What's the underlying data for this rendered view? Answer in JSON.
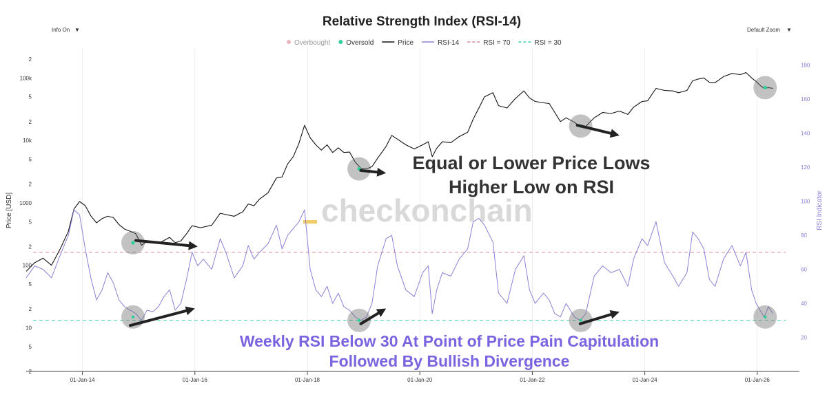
{
  "chart_data": {
    "type": "line",
    "title": "Relative Strength Index (RSI-14)",
    "controls": {
      "info_label": "Info On",
      "zoom_label": "Default Zoom"
    },
    "legend": [
      {
        "label": "Overbought",
        "kind": "dot",
        "color": "#e8b4bd"
      },
      {
        "label": "Oversold",
        "kind": "dot",
        "color": "#2fcf9a"
      },
      {
        "label": "Price",
        "kind": "line",
        "color": "#111111"
      },
      {
        "label": "RSI-14",
        "kind": "line",
        "color": "#8c7fd6"
      },
      {
        "label": "RSI = 70",
        "kind": "dash",
        "color": "#d58a9a"
      },
      {
        "label": "RSI = 30",
        "kind": "dash",
        "color": "#3ecfae"
      }
    ],
    "y_left": {
      "label": "Price [USD]",
      "scale": "log",
      "range": [
        2,
        300000
      ],
      "ticks": [
        {
          "v": 2,
          "t": "2"
        },
        {
          "v": 5,
          "t": "5"
        },
        {
          "v": 10,
          "t": "10"
        },
        {
          "v": 20,
          "t": "2"
        },
        {
          "v": 50,
          "t": "5"
        },
        {
          "v": 100,
          "t": "100"
        },
        {
          "v": 200,
          "t": "2"
        },
        {
          "v": 500,
          "t": "5"
        },
        {
          "v": 1000,
          "t": "1000"
        },
        {
          "v": 2000,
          "t": "2"
        },
        {
          "v": 5000,
          "t": "5"
        },
        {
          "v": 10000,
          "t": "10k"
        },
        {
          "v": 20000,
          "t": "2"
        },
        {
          "v": 50000,
          "t": "5"
        },
        {
          "v": 100000,
          "t": "100k"
        },
        {
          "v": 200000,
          "t": "2"
        }
      ]
    },
    "y_right": {
      "label": "RSI Indicator",
      "range": [
        0,
        190
      ],
      "ticks": [
        20,
        40,
        60,
        80,
        100,
        120,
        140,
        160,
        180
      ]
    },
    "x_axis": {
      "range": [
        2013.0,
        2026.75
      ],
      "ticks": [
        {
          "v": 2014.0,
          "t": "01-Jan-14"
        },
        {
          "v": 2016.0,
          "t": "01-Jan-16"
        },
        {
          "v": 2018.0,
          "t": "01-Jan-18"
        },
        {
          "v": 2020.0,
          "t": "01-Jan-20"
        },
        {
          "v": 2022.0,
          "t": "01-Jan-22"
        },
        {
          "v": 2024.0,
          "t": "01-Jan-24"
        },
        {
          "v": 2026.0,
          "t": "01-Jan-26"
        }
      ]
    },
    "reference_lines": [
      {
        "name": "RSI = 70",
        "value": 70,
        "color": "#d58a9a"
      },
      {
        "name": "RSI = 30",
        "value": 30,
        "color": "#3ecfae"
      }
    ],
    "series": [
      {
        "name": "Price",
        "axis": "left",
        "color": "#111111",
        "points": [
          [
            2013.0,
            80
          ],
          [
            2013.15,
            110
          ],
          [
            2013.3,
            130
          ],
          [
            2013.45,
            100
          ],
          [
            2013.6,
            180
          ],
          [
            2013.75,
            350
          ],
          [
            2013.85,
            800
          ],
          [
            2013.95,
            1050
          ],
          [
            2014.05,
            900
          ],
          [
            2014.15,
            620
          ],
          [
            2014.25,
            480
          ],
          [
            2014.35,
            560
          ],
          [
            2014.45,
            610
          ],
          [
            2014.55,
            580
          ],
          [
            2014.65,
            450
          ],
          [
            2014.75,
            380
          ],
          [
            2014.85,
            350
          ],
          [
            2014.95,
            320
          ],
          [
            2015.05,
            210
          ],
          [
            2015.15,
            240
          ],
          [
            2015.25,
            235
          ],
          [
            2015.35,
            225
          ],
          [
            2015.45,
            250
          ],
          [
            2015.55,
            280
          ],
          [
            2015.65,
            230
          ],
          [
            2015.75,
            245
          ],
          [
            2015.85,
            320
          ],
          [
            2015.95,
            430
          ],
          [
            2016.1,
            400
          ],
          [
            2016.3,
            440
          ],
          [
            2016.45,
            680
          ],
          [
            2016.55,
            650
          ],
          [
            2016.7,
            610
          ],
          [
            2016.85,
            720
          ],
          [
            2016.95,
            960
          ],
          [
            2017.05,
            900
          ],
          [
            2017.15,
            1150
          ],
          [
            2017.3,
            1450
          ],
          [
            2017.45,
            2500
          ],
          [
            2017.55,
            2600
          ],
          [
            2017.65,
            4200
          ],
          [
            2017.75,
            5500
          ],
          [
            2017.85,
            9000
          ],
          [
            2017.95,
            17500
          ],
          [
            2018.05,
            11000
          ],
          [
            2018.15,
            8500
          ],
          [
            2018.25,
            7000
          ],
          [
            2018.35,
            8500
          ],
          [
            2018.45,
            6400
          ],
          [
            2018.55,
            7600
          ],
          [
            2018.65,
            6400
          ],
          [
            2018.75,
            6500
          ],
          [
            2018.85,
            4500
          ],
          [
            2018.95,
            3600
          ],
          [
            2019.05,
            3500
          ],
          [
            2019.15,
            3800
          ],
          [
            2019.25,
            5200
          ],
          [
            2019.4,
            8000
          ],
          [
            2019.5,
            12000
          ],
          [
            2019.6,
            10500
          ],
          [
            2019.75,
            8500
          ],
          [
            2019.9,
            7300
          ],
          [
            2020.05,
            8500
          ],
          [
            2020.15,
            9500
          ],
          [
            2020.22,
            5500
          ],
          [
            2020.3,
            7500
          ],
          [
            2020.4,
            9500
          ],
          [
            2020.55,
            9200
          ],
          [
            2020.7,
            11500
          ],
          [
            2020.85,
            13500
          ],
          [
            2020.95,
            22000
          ],
          [
            2021.05,
            33000
          ],
          [
            2021.15,
            50000
          ],
          [
            2021.3,
            58000
          ],
          [
            2021.4,
            36000
          ],
          [
            2021.55,
            33000
          ],
          [
            2021.7,
            47000
          ],
          [
            2021.85,
            62000
          ],
          [
            2021.95,
            48000
          ],
          [
            2022.05,
            42000
          ],
          [
            2022.2,
            40000
          ],
          [
            2022.3,
            39000
          ],
          [
            2022.4,
            28000
          ],
          [
            2022.5,
            20000
          ],
          [
            2022.6,
            23000
          ],
          [
            2022.75,
            19500
          ],
          [
            2022.85,
            16500
          ],
          [
            2022.95,
            16800
          ],
          [
            2023.1,
            23000
          ],
          [
            2023.25,
            28000
          ],
          [
            2023.4,
            27000
          ],
          [
            2023.55,
            29500
          ],
          [
            2023.7,
            26000
          ],
          [
            2023.8,
            34000
          ],
          [
            2023.95,
            42000
          ],
          [
            2024.05,
            43000
          ],
          [
            2024.2,
            68000
          ],
          [
            2024.35,
            63000
          ],
          [
            2024.5,
            62000
          ],
          [
            2024.6,
            58000
          ],
          [
            2024.75,
            63000
          ],
          [
            2024.85,
            90000
          ],
          [
            2024.95,
            96000
          ],
          [
            2025.05,
            100000
          ],
          [
            2025.15,
            85000
          ],
          [
            2025.25,
            84000
          ],
          [
            2025.4,
            105000
          ],
          [
            2025.55,
            118000
          ],
          [
            2025.7,
            113000
          ],
          [
            2025.8,
            122000
          ],
          [
            2025.9,
            100000
          ],
          [
            2025.98,
            88000
          ],
          [
            2026.05,
            76000
          ],
          [
            2026.12,
            68000
          ],
          [
            2026.2,
            70000
          ],
          [
            2026.28,
            68000
          ]
        ]
      },
      {
        "name": "RSI-14",
        "axis": "right",
        "color": "#8c7fd6",
        "points": [
          [
            2013.0,
            55
          ],
          [
            2013.15,
            62
          ],
          [
            2013.3,
            60
          ],
          [
            2013.45,
            55
          ],
          [
            2013.6,
            68
          ],
          [
            2013.75,
            80
          ],
          [
            2013.85,
            95
          ],
          [
            2013.95,
            92
          ],
          [
            2014.05,
            72
          ],
          [
            2014.15,
            55
          ],
          [
            2014.25,
            42
          ],
          [
            2014.35,
            48
          ],
          [
            2014.45,
            58
          ],
          [
            2014.55,
            52
          ],
          [
            2014.65,
            42
          ],
          [
            2014.75,
            38
          ],
          [
            2014.85,
            36
          ],
          [
            2014.95,
            34
          ],
          [
            2015.05,
            30
          ],
          [
            2015.15,
            36
          ],
          [
            2015.25,
            35
          ],
          [
            2015.35,
            38
          ],
          [
            2015.45,
            44
          ],
          [
            2015.55,
            48
          ],
          [
            2015.65,
            36
          ],
          [
            2015.75,
            40
          ],
          [
            2015.85,
            54
          ],
          [
            2015.95,
            70
          ],
          [
            2016.05,
            62
          ],
          [
            2016.15,
            66
          ],
          [
            2016.3,
            60
          ],
          [
            2016.45,
            78
          ],
          [
            2016.55,
            70
          ],
          [
            2016.7,
            55
          ],
          [
            2016.85,
            62
          ],
          [
            2016.95,
            74
          ],
          [
            2017.05,
            66
          ],
          [
            2017.15,
            70
          ],
          [
            2017.3,
            75
          ],
          [
            2017.45,
            86
          ],
          [
            2017.55,
            72
          ],
          [
            2017.65,
            80
          ],
          [
            2017.75,
            84
          ],
          [
            2017.85,
            88
          ],
          [
            2017.95,
            95
          ],
          [
            2018.05,
            60
          ],
          [
            2018.15,
            48
          ],
          [
            2018.25,
            44
          ],
          [
            2018.35,
            50
          ],
          [
            2018.45,
            40
          ],
          [
            2018.55,
            46
          ],
          [
            2018.65,
            38
          ],
          [
            2018.75,
            36
          ],
          [
            2018.85,
            32
          ],
          [
            2018.95,
            30
          ],
          [
            2019.05,
            32
          ],
          [
            2019.15,
            40
          ],
          [
            2019.25,
            62
          ],
          [
            2019.4,
            78
          ],
          [
            2019.5,
            80
          ],
          [
            2019.6,
            62
          ],
          [
            2019.75,
            48
          ],
          [
            2019.9,
            44
          ],
          [
            2020.05,
            58
          ],
          [
            2020.15,
            62
          ],
          [
            2020.22,
            34
          ],
          [
            2020.3,
            48
          ],
          [
            2020.4,
            58
          ],
          [
            2020.55,
            56
          ],
          [
            2020.7,
            66
          ],
          [
            2020.85,
            72
          ],
          [
            2020.95,
            88
          ],
          [
            2021.05,
            90
          ],
          [
            2021.15,
            86
          ],
          [
            2021.3,
            76
          ],
          [
            2021.4,
            46
          ],
          [
            2021.55,
            40
          ],
          [
            2021.7,
            60
          ],
          [
            2021.85,
            68
          ],
          [
            2021.95,
            48
          ],
          [
            2022.05,
            40
          ],
          [
            2022.2,
            46
          ],
          [
            2022.3,
            42
          ],
          [
            2022.4,
            34
          ],
          [
            2022.5,
            32
          ],
          [
            2022.6,
            40
          ],
          [
            2022.75,
            32
          ],
          [
            2022.85,
            30
          ],
          [
            2022.95,
            34
          ],
          [
            2023.1,
            56
          ],
          [
            2023.25,
            62
          ],
          [
            2023.4,
            58
          ],
          [
            2023.55,
            60
          ],
          [
            2023.7,
            50
          ],
          [
            2023.8,
            66
          ],
          [
            2023.95,
            78
          ],
          [
            2024.05,
            74
          ],
          [
            2024.2,
            88
          ],
          [
            2024.35,
            64
          ],
          [
            2024.5,
            56
          ],
          [
            2024.6,
            50
          ],
          [
            2024.75,
            58
          ],
          [
            2024.85,
            82
          ],
          [
            2024.95,
            78
          ],
          [
            2025.05,
            72
          ],
          [
            2025.15,
            54
          ],
          [
            2025.25,
            50
          ],
          [
            2025.4,
            66
          ],
          [
            2025.55,
            74
          ],
          [
            2025.7,
            62
          ],
          [
            2025.8,
            70
          ],
          [
            2025.9,
            48
          ],
          [
            2025.98,
            40
          ],
          [
            2026.05,
            36
          ],
          [
            2026.12,
            32
          ],
          [
            2026.2,
            38
          ],
          [
            2026.28,
            34
          ]
        ]
      }
    ],
    "oversold_highlights": [
      {
        "x": 2014.9,
        "price": 230,
        "rsi": 32
      },
      {
        "x": 2018.92,
        "price": 3500,
        "rsi": 30
      },
      {
        "x": 2022.86,
        "price": 17000,
        "rsi": 30
      },
      {
        "x": 2026.14,
        "price": 70000,
        "rsi": 32
      }
    ],
    "arrows": [
      {
        "axis": "left",
        "from": [
          2014.95,
          250
        ],
        "to": [
          2016.05,
          200
        ]
      },
      {
        "axis": "right",
        "from": [
          2014.85,
          27
        ],
        "to": [
          2016.0,
          37
        ]
      },
      {
        "axis": "left",
        "from": [
          2018.95,
          3300
        ],
        "to": [
          2019.4,
          3000
        ]
      },
      {
        "axis": "right",
        "from": [
          2018.95,
          28
        ],
        "to": [
          2019.4,
          37
        ]
      },
      {
        "axis": "left",
        "from": [
          2022.8,
          17500
        ],
        "to": [
          2023.55,
          12000
        ]
      },
      {
        "axis": "right",
        "from": [
          2022.85,
          28
        ],
        "to": [
          2023.55,
          35
        ]
      }
    ],
    "annotations": {
      "price_text": [
        "Equal or Lower Price Lows",
        "Higher Low on RSI"
      ],
      "rsi_text": [
        "Weekly RSI Below 30 At Point of Price Pain Capitulation",
        "Followed By Bullish Divergence"
      ],
      "watermark": "checkonchain"
    }
  }
}
